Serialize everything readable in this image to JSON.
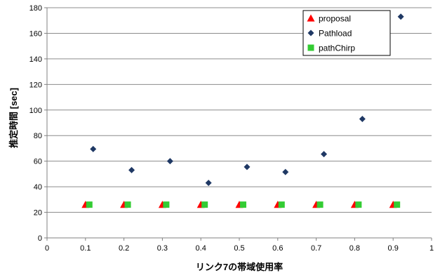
{
  "chart_data": {
    "type": "scatter",
    "xlabel": "リンク7の帯域使用率",
    "ylabel": "推定時間 [sec]",
    "xlim": [
      0,
      1
    ],
    "ylim": [
      0,
      180
    ],
    "x_ticks": [
      "0",
      "0.1",
      "0.2",
      "0.3",
      "0.4",
      "0.5",
      "0.6",
      "0.7",
      "0.8",
      "0.9",
      "1"
    ],
    "y_ticks": [
      "0",
      "20",
      "40",
      "60",
      "80",
      "100",
      "120",
      "140",
      "160",
      "180"
    ],
    "grid": "horizontal",
    "legend_position": "top-right",
    "series": [
      {
        "name": "proposal",
        "marker": "triangle",
        "color": "#ff0000",
        "x": [
          0.1,
          0.2,
          0.3,
          0.4,
          0.5,
          0.6,
          0.7,
          0.8,
          0.9
        ],
        "y": [
          26,
          26,
          26,
          26,
          26,
          26,
          26,
          26,
          26
        ]
      },
      {
        "name": "Pathload",
        "marker": "diamond",
        "color": "#1f3864",
        "x": [
          0.12,
          0.22,
          0.32,
          0.42,
          0.52,
          0.62,
          0.72,
          0.82,
          0.92
        ],
        "y": [
          69.5,
          53,
          60,
          43,
          55.5,
          51.5,
          65.5,
          93,
          173
        ]
      },
      {
        "name": "pathChirp",
        "marker": "square",
        "color": "#33cc33",
        "x": [
          0.11,
          0.21,
          0.31,
          0.41,
          0.51,
          0.61,
          0.71,
          0.81,
          0.91
        ],
        "y": [
          26,
          26,
          26,
          26,
          26,
          26,
          26,
          26,
          26
        ]
      }
    ]
  }
}
